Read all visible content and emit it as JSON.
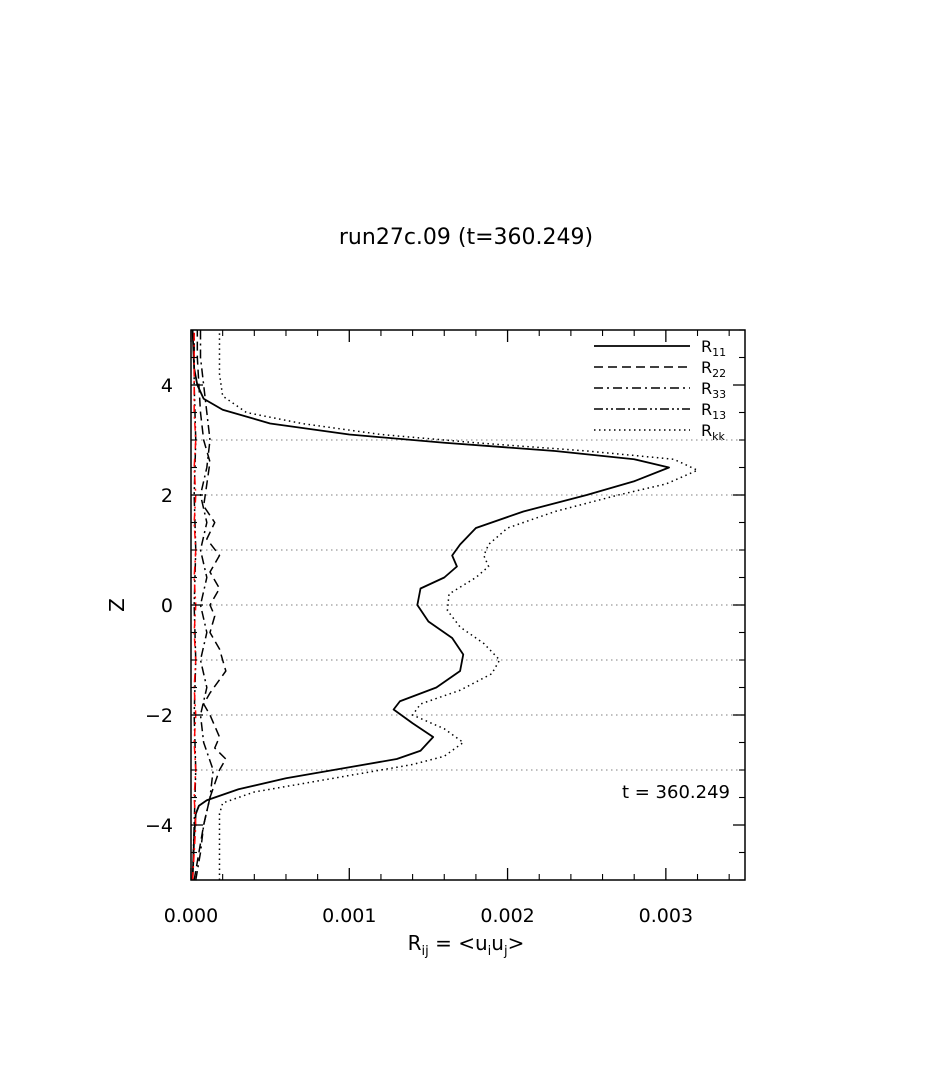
{
  "chart_data": {
    "type": "line",
    "title": "run27c.09 (t=360.249)",
    "ylabel": "Z",
    "xlabel": {
      "main": "R",
      "sub": "ij",
      "rest": " = <u",
      "sub2": "i",
      "mid": "u",
      "sub3": "j",
      "end": ">"
    },
    "xlim": [
      0,
      0.0035
    ],
    "ylim": [
      -5,
      5
    ],
    "x_ticks": [
      {
        "value": 0.0,
        "label": "0.000"
      },
      {
        "value": 0.001,
        "label": "0.001"
      },
      {
        "value": 0.002,
        "label": "0.002"
      },
      {
        "value": 0.003,
        "label": "0.003"
      }
    ],
    "y_ticks": [
      {
        "value": -4,
        "label": "−4"
      },
      {
        "value": -2,
        "label": "−2"
      },
      {
        "value": 0,
        "label": "0"
      },
      {
        "value": 2,
        "label": "2"
      },
      {
        "value": 4,
        "label": "4"
      }
    ],
    "hgrid": [
      -3,
      -2,
      -1,
      0,
      1,
      2,
      3
    ],
    "annotation": "t = 360.249",
    "legend_position": "top-right",
    "series": [
      {
        "name": "R",
        "sub": "11",
        "style": "solid",
        "color": "#000000",
        "points": [
          [
            1e-05,
            -5
          ],
          [
            2e-05,
            -4.2
          ],
          [
            3e-05,
            -3.8
          ],
          [
            5e-05,
            -3.65
          ],
          [
            0.0001,
            -3.55
          ],
          [
            0.0003,
            -3.35
          ],
          [
            0.0006,
            -3.15
          ],
          [
            0.001,
            -2.95
          ],
          [
            0.0013,
            -2.8
          ],
          [
            0.00145,
            -2.65
          ],
          [
            0.00153,
            -2.4
          ],
          [
            0.0014,
            -2.15
          ],
          [
            0.00128,
            -1.9
          ],
          [
            0.00132,
            -1.75
          ],
          [
            0.00155,
            -1.5
          ],
          [
            0.0017,
            -1.2
          ],
          [
            0.00172,
            -0.9
          ],
          [
            0.00165,
            -0.6
          ],
          [
            0.0015,
            -0.3
          ],
          [
            0.00143,
            0
          ],
          [
            0.00145,
            0.3
          ],
          [
            0.0016,
            0.5
          ],
          [
            0.00168,
            0.7
          ],
          [
            0.00165,
            0.9
          ],
          [
            0.0017,
            1.1
          ],
          [
            0.0018,
            1.4
          ],
          [
            0.0021,
            1.7
          ],
          [
            0.0025,
            2.0
          ],
          [
            0.0028,
            2.25
          ],
          [
            0.00302,
            2.5
          ],
          [
            0.0028,
            2.65
          ],
          [
            0.0023,
            2.8
          ],
          [
            0.0016,
            2.95
          ],
          [
            0.001,
            3.1
          ],
          [
            0.0005,
            3.3
          ],
          [
            0.0002,
            3.55
          ],
          [
            8e-05,
            3.75
          ],
          [
            4e-05,
            4.0
          ],
          [
            2e-05,
            4.3
          ],
          [
            1e-05,
            5
          ]
        ]
      },
      {
        "name": "R",
        "sub": "22",
        "style": "dashed",
        "color": "#000000",
        "points": [
          [
            2e-05,
            -5
          ],
          [
            5e-05,
            -4.5
          ],
          [
            8e-05,
            -4.0
          ],
          [
            0.00012,
            -3.5
          ],
          [
            0.00018,
            -3.0
          ],
          [
            0.00022,
            -2.8
          ],
          [
            0.00015,
            -2.6
          ],
          [
            0.00018,
            -2.4
          ],
          [
            0.00012,
            -2.0
          ],
          [
            8e-05,
            -1.8
          ],
          [
            0.00012,
            -1.6
          ],
          [
            0.00022,
            -1.2
          ],
          [
            0.00018,
            -0.8
          ],
          [
            0.00012,
            -0.5
          ],
          [
            0.00015,
            -0.2
          ],
          [
            0.00012,
            0.0
          ],
          [
            0.00018,
            0.3
          ],
          [
            0.00012,
            0.6
          ],
          [
            0.00018,
            0.9
          ],
          [
            0.0001,
            1.2
          ],
          [
            0.00015,
            1.5
          ],
          [
            8e-05,
            1.8
          ],
          [
            0.0001,
            2.2
          ],
          [
            0.00012,
            2.6
          ],
          [
            8e-05,
            3.0
          ],
          [
            6e-05,
            3.5
          ],
          [
            5e-05,
            4.0
          ],
          [
            4e-05,
            4.5
          ],
          [
            4e-05,
            5
          ]
        ]
      },
      {
        "name": "R",
        "sub": "33",
        "style": "dashdot",
        "color": "#000000",
        "points": [
          [
            3e-05,
            -5
          ],
          [
            6e-05,
            -4.5
          ],
          [
            8e-05,
            -4.0
          ],
          [
            0.00012,
            -3.5
          ],
          [
            0.00014,
            -3.0
          ],
          [
            8e-05,
            -2.5
          ],
          [
            6e-05,
            -2.0
          ],
          [
            0.0001,
            -1.5
          ],
          [
            6e-05,
            -1.0
          ],
          [
            0.0001,
            -0.5
          ],
          [
            6e-05,
            0.0
          ],
          [
            0.0001,
            0.5
          ],
          [
            6e-05,
            1.0
          ],
          [
            0.0001,
            1.5
          ],
          [
            6e-05,
            2.0
          ],
          [
            0.0001,
            2.5
          ],
          [
            0.00012,
            3.0
          ],
          [
            0.0001,
            3.5
          ],
          [
            8e-05,
            4.0
          ],
          [
            6e-05,
            4.5
          ],
          [
            6e-05,
            5
          ]
        ]
      },
      {
        "name": "R",
        "sub": "13",
        "style": "dashdotdot",
        "color": "#000000",
        "points": [
          [
            1e-05,
            -5
          ],
          [
            2e-05,
            -4.0
          ],
          [
            3e-05,
            -3.0
          ],
          [
            2e-05,
            -2.0
          ],
          [
            3e-05,
            -1.0
          ],
          [
            2e-05,
            0.0
          ],
          [
            3e-05,
            1.0
          ],
          [
            2e-05,
            2.0
          ],
          [
            3e-05,
            3.0
          ],
          [
            2e-05,
            4.0
          ],
          [
            2e-05,
            5
          ]
        ]
      },
      {
        "name": "R",
        "sub": "kk",
        "style": "dotted",
        "color": "#000000",
        "points": [
          [
            0.00018,
            -5
          ],
          [
            0.00018,
            -4.2
          ],
          [
            0.00018,
            -3.8
          ],
          [
            0.0002,
            -3.6
          ],
          [
            0.0004,
            -3.4
          ],
          [
            0.0007,
            -3.25
          ],
          [
            0.0011,
            -3.05
          ],
          [
            0.0014,
            -2.9
          ],
          [
            0.0016,
            -2.75
          ],
          [
            0.00172,
            -2.5
          ],
          [
            0.0016,
            -2.25
          ],
          [
            0.0014,
            -2.0
          ],
          [
            0.00145,
            -1.8
          ],
          [
            0.0017,
            -1.55
          ],
          [
            0.0019,
            -1.25
          ],
          [
            0.00195,
            -1.0
          ],
          [
            0.00185,
            -0.7
          ],
          [
            0.0017,
            -0.4
          ],
          [
            0.00162,
            -0.1
          ],
          [
            0.00163,
            0.2
          ],
          [
            0.0018,
            0.5
          ],
          [
            0.00188,
            0.7
          ],
          [
            0.00185,
            0.9
          ],
          [
            0.00188,
            1.1
          ],
          [
            0.002,
            1.4
          ],
          [
            0.0023,
            1.7
          ],
          [
            0.0027,
            2.0
          ],
          [
            0.003,
            2.2
          ],
          [
            0.0032,
            2.45
          ],
          [
            0.00305,
            2.65
          ],
          [
            0.0025,
            2.8
          ],
          [
            0.0018,
            2.95
          ],
          [
            0.0012,
            3.1
          ],
          [
            0.0007,
            3.3
          ],
          [
            0.00035,
            3.5
          ],
          [
            0.0002,
            3.8
          ],
          [
            0.00018,
            4.2
          ],
          [
            0.00018,
            5
          ]
        ]
      },
      {
        "name": "",
        "sub": "",
        "style": "dashdot-red",
        "color": "#ff0000",
        "points": [
          [
            1e-05,
            -5
          ],
          [
            2e-05,
            -4.5
          ],
          [
            3e-05,
            -4.0
          ],
          [
            2e-05,
            -3.5
          ],
          [
            3e-05,
            -3.0
          ],
          [
            2e-05,
            -2.5
          ],
          [
            3e-05,
            -2.0
          ],
          [
            2e-05,
            -1.5
          ],
          [
            3e-05,
            -1.0
          ],
          [
            2e-05,
            -0.5
          ],
          [
            3e-05,
            0.0
          ],
          [
            2e-05,
            0.5
          ],
          [
            3e-05,
            1.0
          ],
          [
            2e-05,
            1.5
          ],
          [
            3e-05,
            2.0
          ],
          [
            2e-05,
            2.5
          ],
          [
            3e-05,
            3.0
          ],
          [
            2e-05,
            3.5
          ],
          [
            2e-05,
            4.0
          ],
          [
            2e-05,
            4.5
          ],
          [
            2e-05,
            5
          ]
        ]
      }
    ]
  }
}
